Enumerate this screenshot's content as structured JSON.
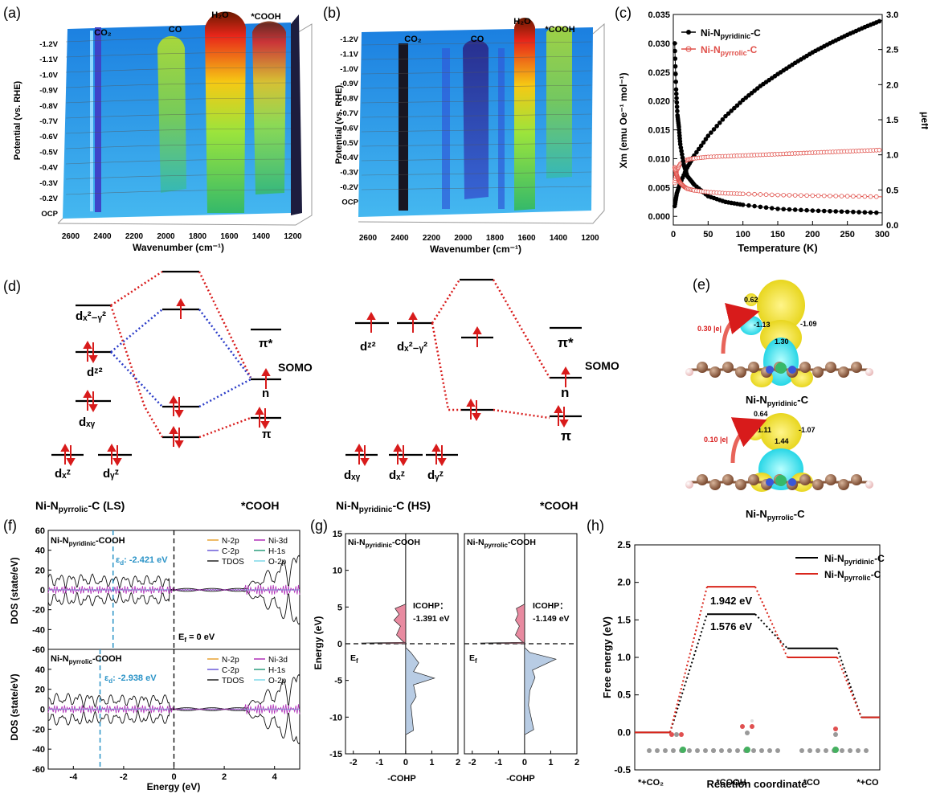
{
  "panels": {
    "a": {
      "label": "(a)",
      "xlabel": "Wavenumber (cm⁻¹)",
      "ylabel": "Potential (vs. RHE)",
      "xticks": [
        "2600",
        "2400",
        "2200",
        "2000",
        "1800",
        "1600",
        "1400",
        "1200"
      ],
      "yticks": [
        "-1.2V",
        "-1.1V",
        "-1.0V",
        "-0.9V",
        "-0.8V",
        "-0.7V",
        "-0.6V",
        "-0.5V",
        "-0.4V",
        "-0.3V",
        "-0.2V",
        "OCP"
      ],
      "peaks": [
        "CO₂",
        "CO",
        "H₂O",
        "*COOH"
      ]
    },
    "b": {
      "label": "(b)",
      "xlabel": "Wavenumber (cm⁻¹)",
      "ylabel": "Potential (vs. RHE)",
      "xticks": [
        "2600",
        "2400",
        "2200",
        "2000",
        "1800",
        "1600",
        "1400",
        "1200"
      ],
      "yticks": [
        "-1.2V",
        "-1.1V",
        "-1.0V",
        "-0.9V",
        "-0.8V",
        "-0.7V",
        "-0.6V",
        "-0.5V",
        "-0.4V",
        "-0.3V",
        "-0.2V",
        "OCP"
      ],
      "peaks": [
        "CO₂",
        "CO",
        "H₂O",
        "*COOH"
      ]
    },
    "c": {
      "label": "(c)",
      "legend": [
        "Ni-N",
        "Ni-N"
      ],
      "legend_sub": [
        "pyridinic",
        "pyrrolic"
      ],
      "legend_suffix": "-C"
    },
    "d": {
      "label": "(d)",
      "left_title": "Ni-N",
      "left_title_sub": "pyrrolic",
      "left_title_suffix": "-C (LS)",
      "right_title": "Ni-N",
      "right_title_sub": "pyridinic",
      "right_title_suffix": "-C (HS)",
      "cooh": "*COOH",
      "somo": "SOMO",
      "pi_star": "π*",
      "pi": "π",
      "n": "n"
    },
    "e": {
      "label": "(e)",
      "top_charge": "0.30 |e|",
      "bottom_charge": "0.10 |e|",
      "top_values": [
        "0.62",
        "-1.13",
        "-1.09",
        "1.30"
      ],
      "bottom_values": [
        "0.64",
        "-1.11",
        "-1.07",
        "1.44"
      ],
      "top_title": "Ni-N",
      "top_title_sub": "pyridinic",
      "bottom_title": "Ni-N",
      "bottom_title_sub": "pyrrolic",
      "suffix": "-C"
    },
    "f": {
      "label": "(f)",
      "ylabel": "DOS (state/eV)",
      "xlabel": "Energy (eV)",
      "top_title": "Ni-N",
      "top_title_sub": "pyridinic",
      "bottom_title": "Ni-N",
      "bottom_title_sub": "pyrrolic",
      "title_suffix": "-COOH",
      "top_ed": "-2.421 eV",
      "bottom_ed": "-2.938 eV",
      "ef": "E",
      "ef_suffix": " = 0 eV",
      "legend": [
        "N-2p",
        "Ni-3d",
        "C-2p",
        "H-1s",
        "TDOS",
        "O-2p"
      ]
    },
    "g": {
      "label": "(g)",
      "ylabel": "Energy (eV)",
      "xlabel": "-COHP",
      "left_title": "Ni-N",
      "left_title_sub": "pyridinic",
      "right_title": "Ni-N",
      "right_title_sub": "pyrrolic",
      "title_suffix": "-COOH",
      "icohp_label": "ICOHP：",
      "left_icohp": "-1.391 eV",
      "right_icohp": "-1.149 eV",
      "ef": "E"
    },
    "h": {
      "label": "(h)",
      "ylabel": "Free energy (eV)",
      "xlabel": "Reaction coordinate",
      "legend_title": "Ni-N",
      "legend_subs": [
        "pyridinic",
        "pyrrolic"
      ],
      "legend_suffix": "-C",
      "barrier_pyrrolic": "1.942 eV",
      "barrier_pyridinic": "1.576 eV"
    }
  },
  "chart_data": [
    {
      "type": "scatter",
      "panel": "c",
      "xlabel": "Temperature (K)",
      "ylabel": "Xm (emu Oe⁻¹ mol⁻¹)",
      "ylabel_right": "μeff",
      "xlim": [
        0,
        300
      ],
      "ylim": [
        -0.0015,
        0.035
      ],
      "ylim_right": [
        0,
        3.0
      ],
      "xticks": [
        "0",
        "50",
        "100",
        "150",
        "200",
        "250",
        "300"
      ],
      "yticks": [
        "0.000",
        "0.005",
        "0.010",
        "0.015",
        "0.020",
        "0.025",
        "0.030",
        "0.035"
      ],
      "yticks_right": [
        "0.0",
        "0.5",
        "1.0",
        "1.5",
        "2.0",
        "2.5",
        "3.0"
      ],
      "series": [
        {
          "name": "Ni-N pyridinic-C μeff",
          "color": "#000000",
          "axis": "right",
          "x": [
            2,
            5,
            10,
            20,
            30,
            50,
            75,
            100,
            125,
            150,
            175,
            200,
            225,
            250,
            275,
            300
          ],
          "values": [
            0.27,
            0.45,
            0.6,
            0.82,
            0.99,
            1.27,
            1.55,
            1.78,
            1.98,
            2.15,
            2.31,
            2.46,
            2.59,
            2.71,
            2.82,
            2.92
          ]
        },
        {
          "name": "Ni-N pyrrolic-C μeff",
          "color": "#e0504a",
          "axis": "right",
          "x": [
            2,
            5,
            10,
            20,
            30,
            50,
            75,
            100,
            125,
            150,
            175,
            200,
            225,
            250,
            275,
            300
          ],
          "values": [
            0.6,
            0.78,
            0.87,
            0.93,
            0.95,
            0.97,
            0.98,
            0.99,
            1.0,
            1.01,
            1.02,
            1.03,
            1.04,
            1.05,
            1.06,
            1.07
          ]
        },
        {
          "name": "Ni-N pyridinic-C Xm",
          "color": "#000000",
          "axis": "left",
          "x": [
            2,
            4,
            6,
            8,
            10,
            15,
            20,
            30,
            50,
            75,
            100,
            150,
            200,
            250,
            300
          ],
          "values": [
            0.03,
            0.022,
            0.0175,
            0.0155,
            0.0125,
            0.009,
            0.007,
            0.0055,
            0.0035,
            0.0025,
            0.002,
            0.0013,
            0.001,
            0.0008,
            0.0006
          ]
        },
        {
          "name": "Ni-N pyrrolic-C Xm",
          "color": "#e0504a",
          "axis": "left",
          "x": [
            2,
            4,
            6,
            8,
            10,
            15,
            20,
            30,
            50,
            75,
            100,
            150,
            200,
            250,
            300
          ],
          "values": [
            0.0085,
            0.0075,
            0.0068,
            0.0062,
            0.0058,
            0.0052,
            0.0048,
            0.0045,
            0.0042,
            0.004,
            0.0039,
            0.0037,
            0.0036,
            0.0035,
            0.0034
          ]
        }
      ]
    },
    {
      "type": "bar",
      "panel": "d",
      "left_levels": [
        "dₓ²₋ᵧ²",
        "dᶻ²",
        "dₓᵧ",
        "dₓᶻ",
        "dᵧᶻ"
      ],
      "right_levels": [
        "dᶻ²",
        "dₓ²₋ᵧ²",
        "dₓᵧ",
        "dₓᶻ",
        "dᵧᶻ"
      ]
    },
    {
      "type": "line",
      "panel": "f",
      "xlim": [
        -5,
        5
      ],
      "ylim": [
        -60,
        60
      ],
      "xticks": [
        "-4",
        "-2",
        "0",
        "2",
        "4"
      ],
      "yticks": [
        "60",
        "40",
        "20",
        "0",
        "-20",
        "-40",
        "-60"
      ],
      "ed_top": -2.421,
      "ed_bottom": -2.938
    },
    {
      "type": "area",
      "panel": "g",
      "xlim": [
        -2.3,
        2
      ],
      "ylim": [
        -15,
        15
      ],
      "xticks": [
        "-2",
        "-1",
        "0",
        "1",
        "2"
      ],
      "yticks": [
        "15",
        "10",
        "5",
        "0",
        "-5",
        "-10",
        "-15"
      ],
      "left_icohp": -1.391,
      "right_icohp": -1.149
    },
    {
      "type": "line",
      "panel": "h",
      "categories": [
        "*+CO₂",
        "*COOH",
        "*CO",
        "*+CO"
      ],
      "ylim": [
        -0.5,
        2.5
      ],
      "yticks": [
        "2.5",
        "2.0",
        "1.5",
        "1.0",
        "0.5",
        "0.0",
        "-0.5"
      ],
      "series": [
        {
          "name": "Ni-N pyridinic-C",
          "color": "#000000",
          "values": [
            0.0,
            1.576,
            1.12,
            0.2
          ]
        },
        {
          "name": "Ni-N pyrrolic-C",
          "color": "#d9261c",
          "values": [
            0.0,
            1.942,
            1.0,
            0.2
          ]
        }
      ]
    }
  ]
}
